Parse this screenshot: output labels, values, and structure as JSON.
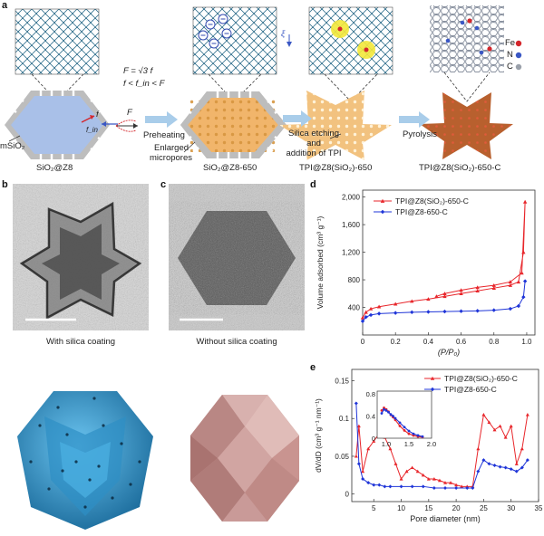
{
  "panels": {
    "a": "a",
    "b": "b",
    "c": "c",
    "d": "d",
    "e": "e"
  },
  "schematic": {
    "stage1": "SiO₂@Z8",
    "stage2": "SiO₂@Z8-650",
    "stage3": "TPI@Z8(SiO₂)-650",
    "stage4": "TPI@Z8(SiO₂)-650-C",
    "step1": "Preheating",
    "step2_line1": "Silica etching",
    "step2_line2": "and",
    "step2_line3": "addition of TPI",
    "step3": "Pyrolysis",
    "mSiO2": "mSiO₂",
    "enlarged_line1": "Enlarged",
    "enlarged_line2": "micropores",
    "force_eq1": "F = √3 f",
    "force_eq2": "f < f_in < F",
    "f_label": "f",
    "fin_label": "f_in",
    "F_label": "F",
    "xi_label": "ξ",
    "legend": [
      "Fe",
      "N",
      "C"
    ],
    "colors": {
      "Fe": "#d4262b",
      "N": "#3a57c4",
      "C": "#9aa0aa",
      "blue_particle": "#a9c0e8",
      "orange_particle": "#f1b56b",
      "light_particle": "#f7d79c",
      "carbon_particle": "#b8602e",
      "arrow": "#a9cdea"
    }
  },
  "tem": {
    "with_coating": "With silica coating",
    "without_coating": "Without silica coating"
  },
  "chart_d": {
    "type": "line",
    "xlabel": "(P/P₀)",
    "ylabel": "Volume adsorbed (cm³ g⁻¹)",
    "xlim": [
      0,
      1.05
    ],
    "ylim": [
      0,
      2100
    ],
    "xticks": [
      0,
      0.2,
      0.4,
      0.6,
      0.8,
      1.0
    ],
    "xtick_labels": [
      "0",
      "0.2",
      "0.4",
      "0.6",
      "0.8",
      "1.0"
    ],
    "yticks": [
      400,
      800,
      1200,
      1600,
      2000
    ],
    "ytick_labels": [
      "400",
      "800",
      "1,200",
      "1,600",
      "2,000"
    ],
    "series": [
      {
        "name": "TPI@Z8(SiO₂)-650-C",
        "color": "#e8262b",
        "marker": "triangle",
        "x": [
          0.0,
          0.02,
          0.05,
          0.1,
          0.2,
          0.3,
          0.4,
          0.5,
          0.6,
          0.7,
          0.8,
          0.9,
          0.95,
          0.98,
          0.99,
          0.97,
          0.9,
          0.8,
          0.7,
          0.6,
          0.5,
          0.45
        ],
        "y": [
          250,
          330,
          380,
          410,
          450,
          490,
          520,
          560,
          600,
          640,
          680,
          720,
          770,
          1200,
          1930,
          900,
          770,
          720,
          690,
          650,
          600,
          560
        ]
      },
      {
        "name": "TPI@Z8-650-C",
        "color": "#1f35d8",
        "marker": "diamond",
        "x": [
          0.0,
          0.02,
          0.05,
          0.1,
          0.2,
          0.3,
          0.4,
          0.5,
          0.6,
          0.7,
          0.8,
          0.9,
          0.95,
          0.98,
          0.99
        ],
        "y": [
          200,
          260,
          290,
          310,
          320,
          330,
          335,
          340,
          345,
          350,
          360,
          380,
          420,
          550,
          780
        ]
      }
    ]
  },
  "chart_e": {
    "type": "line",
    "xlabel": "Pore diameter (nm)",
    "ylabel": "dV/dD (cm³ g⁻¹ nm⁻¹)",
    "xlim": [
      1,
      35
    ],
    "ylim": [
      -0.01,
      0.165
    ],
    "xticks": [
      5,
      10,
      15,
      20,
      25,
      30,
      35
    ],
    "xtick_labels": [
      "5",
      "10",
      "15",
      "20",
      "25",
      "30",
      "35"
    ],
    "yticks": [
      0,
      0.05,
      0.1,
      0.15
    ],
    "ytick_labels": [
      "0",
      "0.05",
      "0.1",
      "0.15"
    ],
    "series": [
      {
        "name": "TPI@Z8(SiO₂)-650-C",
        "color": "#e8262b",
        "marker": "triangle",
        "x": [
          1.8,
          2.3,
          3,
          4,
          5,
          6,
          7,
          8,
          9,
          10,
          11,
          12,
          13,
          14,
          15,
          16,
          17,
          18,
          19,
          20,
          21,
          22,
          23,
          24,
          25,
          26,
          27,
          28,
          29,
          30,
          31,
          32,
          33
        ],
        "y": [
          0.05,
          0.09,
          0.03,
          0.06,
          0.07,
          0.08,
          0.075,
          0.06,
          0.04,
          0.02,
          0.03,
          0.035,
          0.03,
          0.025,
          0.02,
          0.02,
          0.018,
          0.015,
          0.015,
          0.012,
          0.01,
          0.01,
          0.01,
          0.06,
          0.105,
          0.095,
          0.085,
          0.09,
          0.075,
          0.09,
          0.04,
          0.06,
          0.105
        ]
      },
      {
        "name": "TPI@Z8-650-C",
        "color": "#1f35d8",
        "marker": "diamond",
        "x": [
          1.8,
          2.3,
          3,
          4,
          5,
          6,
          7,
          8,
          10,
          12,
          14,
          16,
          18,
          20,
          22,
          23,
          24,
          25,
          26,
          27,
          28,
          29,
          30,
          31,
          32,
          33
        ],
        "y": [
          0.12,
          0.04,
          0.02,
          0.015,
          0.012,
          0.012,
          0.01,
          0.01,
          0.01,
          0.01,
          0.01,
          0.008,
          0.008,
          0.008,
          0.008,
          0.008,
          0.03,
          0.045,
          0.04,
          0.038,
          0.036,
          0.035,
          0.033,
          0.03,
          0.035,
          0.045
        ]
      }
    ],
    "inset": {
      "xlim": [
        0.8,
        2.0
      ],
      "ylim": [
        0,
        0.85
      ],
      "xticks": [
        1.0,
        1.5,
        2.0
      ],
      "xtick_labels": [
        "1.0",
        "1.5",
        "2.0"
      ],
      "yticks": [
        0,
        0.4,
        0.8
      ],
      "ytick_labels": [
        "0",
        "0.4",
        "0.8"
      ],
      "series": [
        {
          "name": "TPI@Z8(SiO₂)-650-C",
          "color": "#e8262b",
          "x": [
            0.9,
            0.95,
            1.0,
            1.05,
            1.1,
            1.15,
            1.2,
            1.3,
            1.4,
            1.5,
            1.6,
            1.7,
            1.8
          ],
          "y": [
            0.5,
            0.55,
            0.52,
            0.48,
            0.42,
            0.38,
            0.33,
            0.22,
            0.14,
            0.08,
            0.05,
            0.03,
            0.02
          ]
        },
        {
          "name": "TPI@Z8-650-C",
          "color": "#1f35d8",
          "x": [
            0.9,
            0.95,
            1.0,
            1.05,
            1.1,
            1.15,
            1.2,
            1.3,
            1.4,
            1.5,
            1.6,
            1.7,
            1.8
          ],
          "y": [
            0.45,
            0.52,
            0.5,
            0.47,
            0.43,
            0.4,
            0.36,
            0.28,
            0.2,
            0.13,
            0.08,
            0.05,
            0.03
          ]
        }
      ]
    }
  }
}
